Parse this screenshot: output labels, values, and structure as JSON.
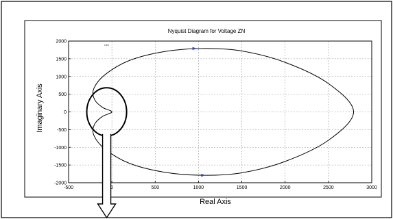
{
  "chart_data": {
    "type": "line",
    "title": "Nyquist Diagram for Voltage ZN",
    "xlabel": "Real Axis",
    "ylabel": "Imaginary Axis",
    "xlim": [
      -500,
      3000
    ],
    "ylim": [
      -2000,
      2000
    ],
    "x_ticks": [
      "-500",
      "0",
      "500",
      "1000",
      "1500",
      "2000",
      "2500",
      "3000"
    ],
    "y_ticks": [
      "2000",
      "1500",
      "1000",
      "500",
      "0",
      "-500",
      "-1000",
      "-1500",
      "-2000"
    ],
    "grid": true,
    "series": [
      {
        "points": [
          [
            1050,
            1790
          ],
          [
            1500,
            1720
          ],
          [
            2000,
            1400
          ],
          [
            2500,
            800
          ],
          [
            2790,
            0
          ],
          [
            2500,
            -800
          ],
          [
            2000,
            -1400
          ],
          [
            1500,
            -1720
          ],
          [
            1050,
            -1790
          ],
          [
            600,
            -1700
          ],
          [
            200,
            -1450
          ],
          [
            -80,
            -1050
          ],
          [
            -210,
            -650
          ],
          [
            -200,
            -350
          ],
          [
            -110,
            -130
          ],
          [
            0,
            0
          ],
          [
            -110,
            130
          ],
          [
            -200,
            350
          ],
          [
            -210,
            650
          ],
          [
            -80,
            1050
          ],
          [
            200,
            1450
          ],
          [
            600,
            1700
          ],
          [
            1050,
            1790
          ]
        ]
      }
    ],
    "markers": [
      {
        "x": 950,
        "y": 1790,
        "color": "#2a3fd6"
      },
      {
        "x": 1050,
        "y": -1790,
        "color": "#2a3fd6"
      }
    ],
    "highlight_circle": {
      "x": -60,
      "y": 0,
      "rx": 230,
      "ry": 680
    },
    "top_left_note": "x 10"
  }
}
